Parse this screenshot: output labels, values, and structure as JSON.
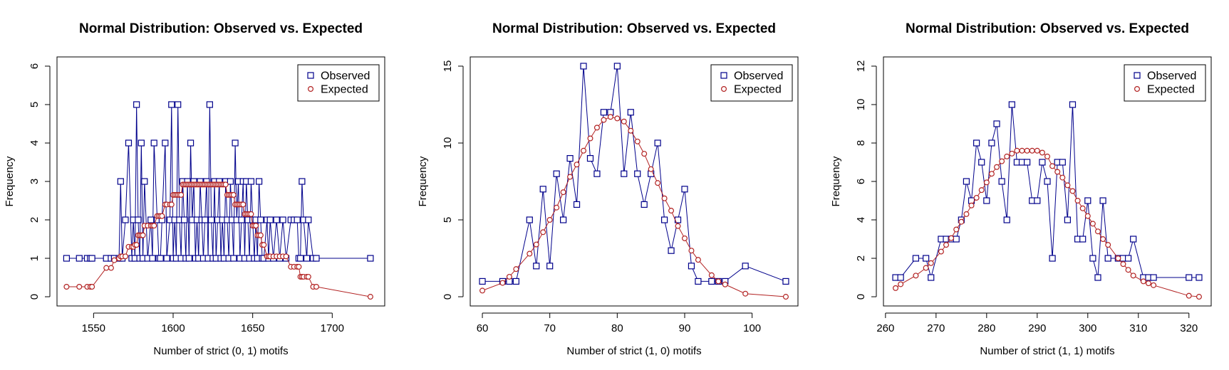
{
  "colors": {
    "observed": "#00008B",
    "expected": "#B22222"
  },
  "chart_data": [
    {
      "type": "line",
      "title": "Normal Distribution: Observed vs. Expected",
      "xlabel": "Number of strict (0, 1) motifs",
      "ylabel": "Frequency",
      "xlim": [
        1527,
        1733
      ],
      "ylim": [
        -0.24,
        6.24
      ],
      "xticks": [
        1550,
        1600,
        1650,
        1700
      ],
      "yticks": [
        0,
        1,
        2,
        3,
        4,
        5,
        6
      ],
      "legend": {
        "position": "top-right",
        "entries": [
          "Observed",
          "Expected"
        ]
      },
      "series": [
        {
          "name": "Observed",
          "marker": "square",
          "x": [
            1533,
            1541,
            1546,
            1548,
            1549,
            1558,
            1561,
            1563,
            1566,
            1567,
            1568,
            1570,
            1572,
            1574,
            1575,
            1576,
            1577,
            1578,
            1579,
            1580,
            1581,
            1582,
            1584,
            1586,
            1587,
            1588,
            1590,
            1591,
            1592,
            1593,
            1595,
            1596,
            1598,
            1599,
            1600,
            1601,
            1602,
            1603,
            1604,
            1605,
            1606,
            1607,
            1608,
            1609,
            1610,
            1611,
            1612,
            1613,
            1614,
            1615,
            1616,
            1617,
            1618,
            1619,
            1620,
            1621,
            1622,
            1623,
            1624,
            1625,
            1626,
            1627,
            1628,
            1629,
            1630,
            1631,
            1632,
            1633,
            1634,
            1635,
            1636,
            1637,
            1638,
            1639,
            1640,
            1641,
            1642,
            1643,
            1644,
            1645,
            1646,
            1647,
            1648,
            1649,
            1650,
            1651,
            1652,
            1653,
            1654,
            1655,
            1656,
            1657,
            1659,
            1660,
            1661,
            1663,
            1665,
            1667,
            1669,
            1671,
            1674,
            1676,
            1678,
            1679,
            1680,
            1681,
            1682,
            1684,
            1685,
            1688,
            1690,
            1724
          ],
          "y": [
            1,
            1,
            1,
            1,
            1,
            1,
            1,
            1,
            1,
            3,
            1,
            2,
            4,
            1,
            2,
            1,
            5,
            2,
            1,
            4,
            1,
            3,
            1,
            2,
            1,
            4,
            2,
            1,
            1,
            2,
            4,
            1,
            2,
            5,
            1,
            2,
            1,
            5,
            2,
            1,
            3,
            2,
            1,
            3,
            1,
            4,
            2,
            3,
            1,
            2,
            1,
            3,
            2,
            1,
            2,
            3,
            1,
            5,
            2,
            1,
            3,
            1,
            2,
            3,
            1,
            2,
            1,
            3,
            2,
            1,
            3,
            2,
            1,
            4,
            2,
            3,
            1,
            2,
            3,
            1,
            3,
            2,
            1,
            3,
            2,
            1,
            2,
            1,
            3,
            2,
            1,
            1,
            2,
            1,
            2,
            1,
            2,
            1,
            2,
            1,
            2,
            2,
            2,
            1,
            1,
            3,
            2,
            1,
            2,
            1,
            1,
            1
          ],
          "color": "#00008B"
        },
        {
          "name": "Expected",
          "marker": "circle",
          "x": [
            1533,
            1541,
            1546,
            1548,
            1549,
            1558,
            1561,
            1563,
            1566,
            1567,
            1568,
            1570,
            1572,
            1574,
            1575,
            1576,
            1577,
            1578,
            1579,
            1580,
            1581,
            1582,
            1584,
            1586,
            1587,
            1588,
            1590,
            1591,
            1592,
            1593,
            1595,
            1596,
            1598,
            1599,
            1600,
            1601,
            1602,
            1603,
            1604,
            1605,
            1606,
            1607,
            1608,
            1609,
            1610,
            1611,
            1612,
            1613,
            1614,
            1615,
            1616,
            1617,
            1618,
            1619,
            1620,
            1621,
            1622,
            1623,
            1624,
            1625,
            1626,
            1627,
            1628,
            1629,
            1630,
            1631,
            1632,
            1633,
            1634,
            1635,
            1636,
            1637,
            1638,
            1639,
            1640,
            1641,
            1642,
            1643,
            1644,
            1645,
            1646,
            1647,
            1648,
            1649,
            1650,
            1651,
            1652,
            1653,
            1654,
            1655,
            1656,
            1657,
            1659,
            1660,
            1661,
            1663,
            1665,
            1667,
            1669,
            1671,
            1674,
            1676,
            1678,
            1679,
            1680,
            1681,
            1682,
            1684,
            1685,
            1688,
            1690,
            1724
          ],
          "y": [
            0.26,
            0.26,
            0.26,
            0.26,
            0.26,
            0.75,
            0.75,
            0.95,
            1.0,
            1.05,
            1.05,
            1.05,
            1.3,
            1.3,
            1.3,
            1.35,
            1.35,
            1.6,
            1.6,
            1.6,
            1.6,
            1.85,
            1.85,
            1.85,
            1.85,
            1.85,
            2.1,
            2.1,
            2.1,
            2.1,
            2.4,
            2.4,
            2.4,
            2.4,
            2.65,
            2.65,
            2.65,
            2.65,
            2.65,
            2.65,
            2.92,
            2.92,
            2.92,
            2.92,
            2.92,
            2.92,
            2.92,
            2.92,
            2.92,
            2.92,
            2.92,
            2.92,
            2.92,
            2.92,
            2.92,
            2.92,
            2.92,
            2.92,
            2.92,
            2.92,
            2.92,
            2.92,
            2.92,
            2.92,
            2.92,
            2.92,
            2.92,
            2.92,
            2.65,
            2.65,
            2.65,
            2.65,
            2.65,
            2.4,
            2.4,
            2.4,
            2.4,
            2.4,
            2.4,
            2.15,
            2.15,
            2.15,
            2.15,
            2.15,
            1.85,
            1.85,
            1.85,
            1.6,
            1.6,
            1.6,
            1.35,
            1.35,
            1.05,
            1.05,
            1.05,
            1.05,
            1.05,
            1.05,
            1.05,
            1.05,
            0.78,
            0.78,
            0.78,
            0.78,
            0.52,
            0.52,
            0.52,
            0.52,
            0.52,
            0.26,
            0.26,
            0.0
          ],
          "color": "#B22222"
        }
      ]
    },
    {
      "type": "line",
      "title": "Normal Distribution: Observed vs. Expected",
      "xlabel": "Number of strict (1, 0) motifs",
      "ylabel": "Frequency",
      "xlim": [
        58.2,
        106.8
      ],
      "ylim": [
        -0.6,
        15.6
      ],
      "xticks": [
        60,
        70,
        80,
        90,
        100
      ],
      "yticks": [
        0,
        5,
        10,
        15
      ],
      "legend": {
        "position": "top-right",
        "entries": [
          "Observed",
          "Expected"
        ]
      },
      "series": [
        {
          "name": "Observed",
          "marker": "square",
          "x": [
            60,
            63,
            64,
            65,
            67,
            68,
            69,
            70,
            71,
            72,
            73,
            74,
            75,
            76,
            77,
            78,
            79,
            80,
            81,
            82,
            83,
            84,
            85,
            86,
            87,
            88,
            89,
            90,
            91,
            92,
            94,
            95,
            96,
            99,
            105
          ],
          "y": [
            1,
            1,
            1,
            1,
            5,
            2,
            7,
            2,
            8,
            5,
            9,
            6,
            15,
            9,
            8,
            12,
            12,
            15,
            8,
            12,
            8,
            6,
            8,
            10,
            5,
            3,
            5,
            7,
            2,
            1,
            1,
            1,
            1,
            2,
            1
          ],
          "color": "#00008B"
        },
        {
          "name": "Expected",
          "marker": "circle",
          "x": [
            60,
            63,
            64,
            65,
            67,
            68,
            69,
            70,
            71,
            72,
            73,
            74,
            75,
            76,
            77,
            78,
            79,
            80,
            81,
            82,
            83,
            84,
            85,
            86,
            87,
            88,
            89,
            90,
            91,
            92,
            94,
            95,
            96,
            99,
            105
          ],
          "y": [
            0.4,
            0.9,
            1.3,
            1.8,
            2.8,
            3.4,
            4.2,
            5.0,
            5.8,
            6.8,
            7.8,
            8.6,
            9.5,
            10.3,
            11.0,
            11.5,
            11.7,
            11.6,
            11.4,
            10.8,
            10.1,
            9.3,
            8.3,
            7.4,
            6.4,
            5.6,
            4.6,
            3.8,
            3.0,
            2.4,
            1.4,
            1.0,
            0.8,
            0.2,
            0.0
          ],
          "color": "#B22222"
        }
      ]
    },
    {
      "type": "line",
      "title": "Normal Distribution: Observed vs. Expected",
      "xlabel": "Number of strict (1, 1) motifs",
      "ylabel": "Frequency",
      "xlim": [
        259.6,
        324.4
      ],
      "ylim": [
        -0.48,
        12.48
      ],
      "xticks": [
        260,
        270,
        280,
        290,
        300,
        310,
        320
      ],
      "yticks": [
        0,
        2,
        4,
        6,
        8,
        10,
        12
      ],
      "legend": {
        "position": "top-right",
        "entries": [
          "Observed",
          "Expected"
        ]
      },
      "series": [
        {
          "name": "Observed",
          "marker": "square",
          "x": [
            262,
            263,
            266,
            268,
            269,
            271,
            272,
            273,
            274,
            275,
            276,
            277,
            278,
            279,
            280,
            281,
            282,
            283,
            284,
            285,
            286,
            287,
            288,
            289,
            290,
            291,
            292,
            293,
            294,
            295,
            296,
            297,
            298,
            299,
            300,
            301,
            302,
            303,
            304,
            306,
            307,
            308,
            309,
            311,
            312,
            313,
            320,
            322
          ],
          "y": [
            1,
            1,
            2,
            2,
            1,
            3,
            3,
            3,
            3,
            4,
            6,
            5,
            8,
            7,
            5,
            8,
            9,
            6,
            4,
            10,
            7,
            7,
            7,
            5,
            5,
            7,
            6,
            2,
            7,
            7,
            4,
            10,
            3,
            3,
            5,
            2,
            1,
            5,
            2,
            2,
            2,
            2,
            3,
            1,
            1,
            1,
            1,
            1
          ],
          "color": "#00008B"
        },
        {
          "name": "Expected",
          "marker": "circle",
          "x": [
            262,
            263,
            266,
            268,
            269,
            271,
            272,
            273,
            274,
            275,
            276,
            277,
            278,
            279,
            280,
            281,
            282,
            283,
            284,
            285,
            286,
            287,
            288,
            289,
            290,
            291,
            292,
            293,
            294,
            295,
            296,
            297,
            298,
            299,
            300,
            301,
            302,
            303,
            304,
            306,
            307,
            308,
            309,
            311,
            312,
            313,
            320,
            322
          ],
          "y": [
            0.45,
            0.65,
            1.1,
            1.5,
            1.75,
            2.35,
            2.7,
            3.05,
            3.5,
            3.9,
            4.3,
            4.75,
            5.15,
            5.55,
            5.95,
            6.4,
            6.75,
            7.05,
            7.3,
            7.45,
            7.6,
            7.6,
            7.6,
            7.6,
            7.6,
            7.5,
            7.3,
            6.8,
            6.5,
            6.2,
            5.8,
            5.5,
            5.0,
            4.6,
            4.2,
            3.8,
            3.4,
            3.0,
            2.7,
            2.0,
            1.7,
            1.4,
            1.1,
            0.8,
            0.7,
            0.6,
            0.05,
            0.0
          ],
          "color": "#B22222"
        }
      ]
    }
  ]
}
